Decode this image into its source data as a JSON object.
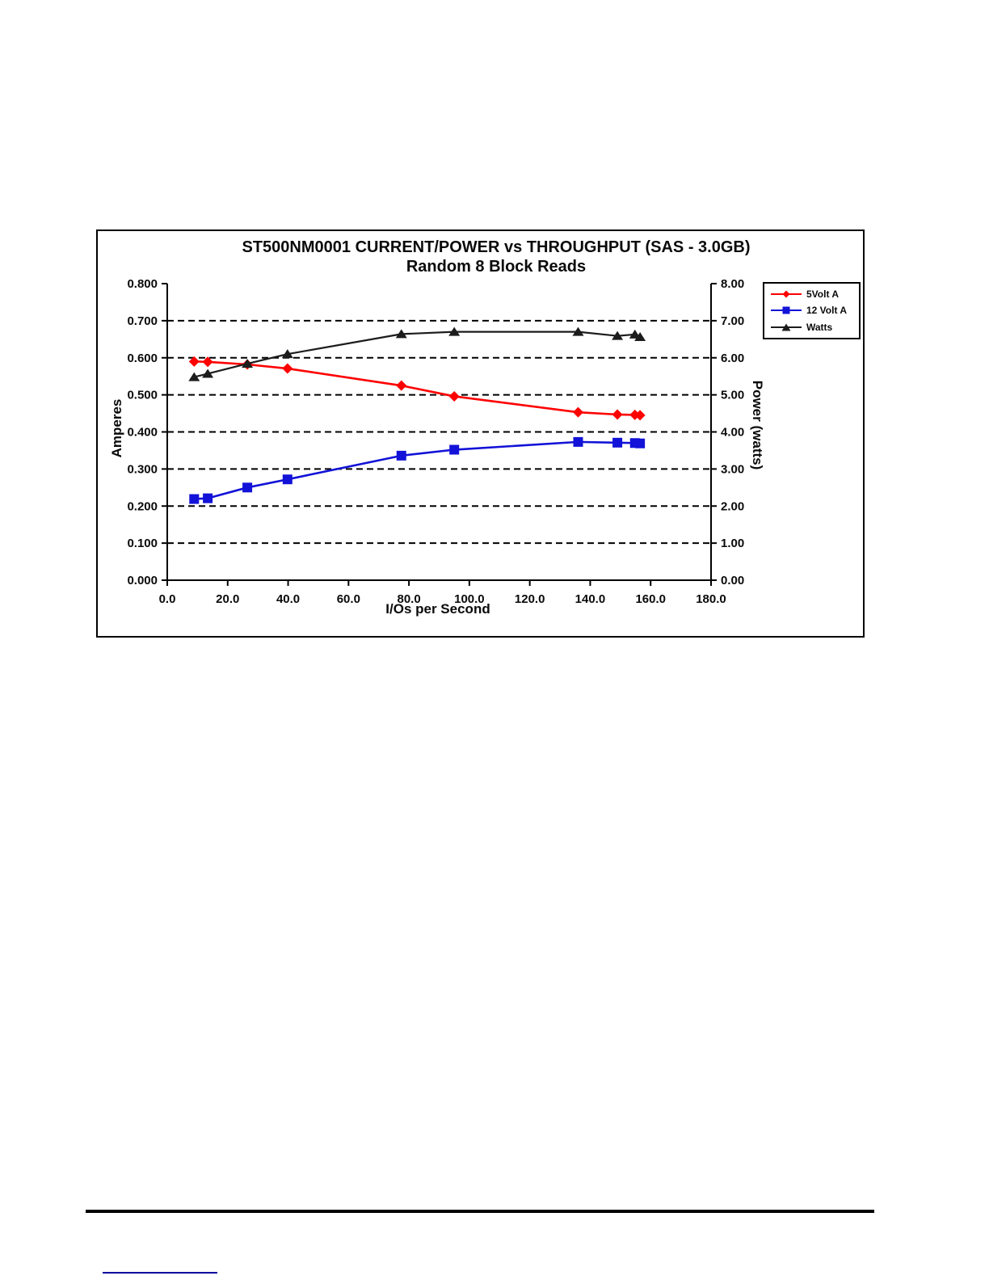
{
  "chart_data": {
    "type": "line",
    "title": "ST500NM0001 CURRENT/POWER vs THROUGHPUT (SAS - 3.0GB)",
    "subtitle": "Random 8 Block Reads",
    "xlabel": "I/Os per Second",
    "ylabel_left": "Amperes",
    "ylabel_right": "Power (watts)",
    "xlim": [
      0,
      180
    ],
    "ylim_left": [
      0,
      0.8
    ],
    "ylim_right": [
      0,
      8
    ],
    "x_ticks": [
      "0.0",
      "20.0",
      "40.0",
      "60.0",
      "80.0",
      "100.0",
      "120.0",
      "140.0",
      "160.0",
      "180.0"
    ],
    "y_ticks_left": [
      "0.000",
      "0.100",
      "0.200",
      "0.300",
      "0.400",
      "0.500",
      "0.600",
      "0.700",
      "0.800"
    ],
    "y_ticks_right": [
      "0.00",
      "1.00",
      "2.00",
      "3.00",
      "4.00",
      "5.00",
      "6.00",
      "7.00",
      "8.00"
    ],
    "grid": "horizontal-dashed",
    "legend_position": "top-right",
    "x": [
      8.9,
      13.4,
      26.5,
      39.8,
      77.5,
      95.0,
      136.0,
      149.0,
      154.8,
      156.5
    ],
    "series": [
      {
        "name": "5Volt A",
        "axis": "left",
        "color": "#fe0000",
        "marker": "diamond",
        "values": [
          0.59,
          0.589,
          0.582,
          0.571,
          0.525,
          0.496,
          0.453,
          0.447,
          0.446,
          0.445
        ]
      },
      {
        "name": "12 Volt A",
        "axis": "left",
        "color": "#1212d8",
        "marker": "square",
        "values": [
          0.219,
          0.221,
          0.25,
          0.272,
          0.336,
          0.352,
          0.373,
          0.371,
          0.37,
          0.369
        ]
      },
      {
        "name": "Watts",
        "axis": "right",
        "color": "#1c1c1c",
        "marker": "triangle",
        "values": [
          5.48,
          5.57,
          5.84,
          6.1,
          6.64,
          6.7,
          6.7,
          6.59,
          6.63,
          6.56
        ]
      }
    ]
  },
  "footer": {
    "rule_color": "#000000",
    "link_underline_color": "#00009c"
  }
}
